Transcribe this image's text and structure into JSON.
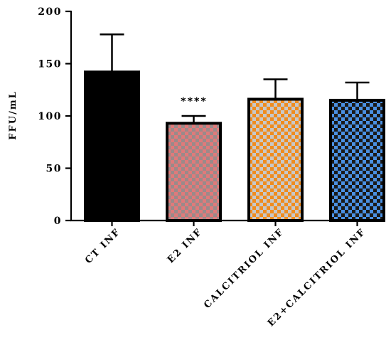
{
  "chart_data": {
    "type": "bar",
    "categories": [
      "CT INF",
      "E2 INF",
      "CALCITRIOL INF",
      "E2+CALCITRIOL INF"
    ],
    "values": [
      142,
      93,
      116,
      115
    ],
    "errors": [
      36,
      7,
      19,
      17
    ],
    "ylabel": "FFU/mL",
    "ylim": [
      0,
      200
    ],
    "yticks": [
      "0",
      "50",
      "100",
      "150",
      "200"
    ],
    "grid": false,
    "legend": "none",
    "annotations": [
      {
        "category": "E2 INF",
        "text": "****"
      }
    ],
    "styles": [
      {
        "fill": "#000000",
        "pattern": "solid"
      },
      {
        "fill": "#e07a7a",
        "check": "#9a8a8a",
        "pattern": "checker"
      },
      {
        "fill": "#f08c1e",
        "check": "#c8c8c8",
        "pattern": "checker"
      },
      {
        "fill": "#4a90e2",
        "check": "#1a1a1a",
        "pattern": "checker"
      }
    ]
  }
}
